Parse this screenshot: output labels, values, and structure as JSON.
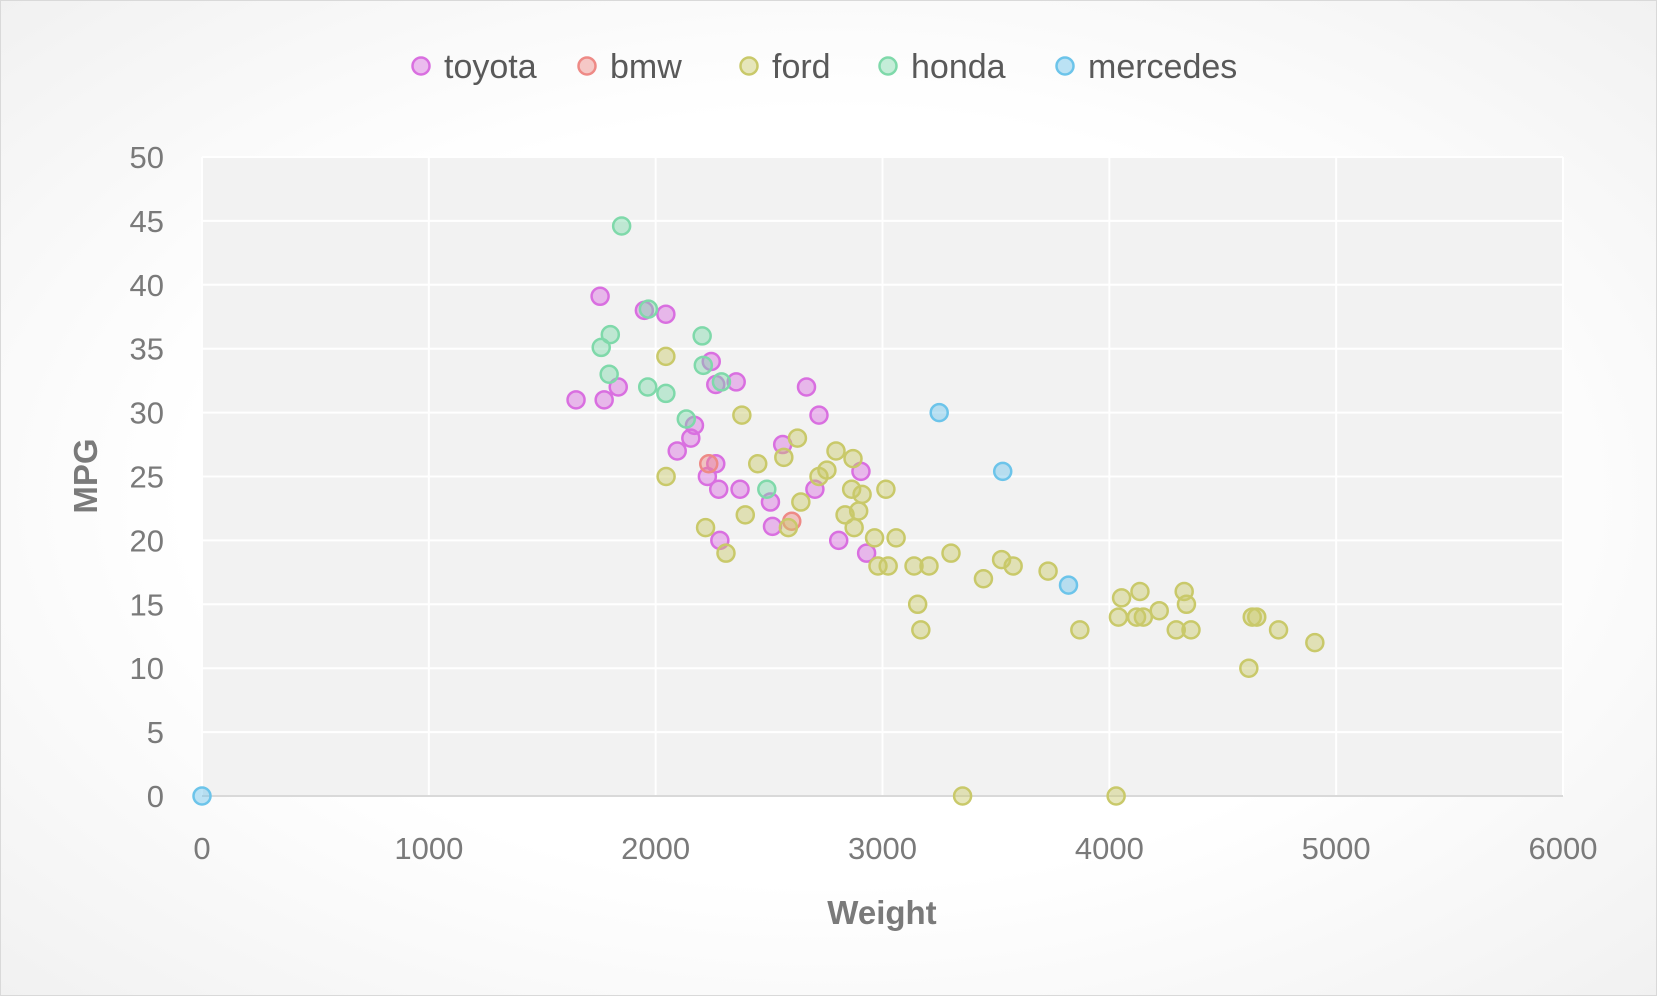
{
  "chart_data": {
    "type": "scatter",
    "title": "",
    "xlabel": "Weight",
    "ylabel": "MPG",
    "xlim": [
      0,
      6000
    ],
    "ylim": [
      0,
      50
    ],
    "xticks": [
      0,
      1000,
      2000,
      3000,
      4000,
      5000,
      6000
    ],
    "yticks": [
      0,
      5,
      10,
      15,
      20,
      25,
      30,
      35,
      40,
      45,
      50
    ],
    "grid": true,
    "legend_position": "top",
    "series": [
      {
        "name": "toyota",
        "color": "#d96fe0",
        "points": [
          [
            1649,
            31
          ],
          [
            1755,
            39.1
          ],
          [
            1773,
            31
          ],
          [
            1835,
            32
          ],
          [
            1950,
            38
          ],
          [
            2045,
            37.7
          ],
          [
            2095,
            27
          ],
          [
            2155,
            28
          ],
          [
            2171,
            29
          ],
          [
            2228,
            25
          ],
          [
            2245,
            34
          ],
          [
            2265,
            26
          ],
          [
            2278,
            24
          ],
          [
            2265,
            32.2
          ],
          [
            2283,
            20
          ],
          [
            2355,
            32.4
          ],
          [
            2372,
            24
          ],
          [
            2506,
            23
          ],
          [
            2515,
            21.1
          ],
          [
            2560,
            27.5
          ],
          [
            2665,
            32
          ],
          [
            2702,
            24
          ],
          [
            2720,
            29.8
          ],
          [
            2807,
            20
          ],
          [
            2905,
            25.4
          ],
          [
            2930,
            19
          ]
        ]
      },
      {
        "name": "bmw",
        "color": "#ee8a86",
        "points": [
          [
            2234,
            26
          ],
          [
            2600,
            21.5
          ]
        ]
      },
      {
        "name": "ford",
        "color": "#c9c96a",
        "points": [
          [
            2045,
            34.4
          ],
          [
            2046,
            25
          ],
          [
            2220,
            21
          ],
          [
            2310,
            19
          ],
          [
            2380,
            29.8
          ],
          [
            2395,
            22
          ],
          [
            2450,
            26
          ],
          [
            2565,
            26.5
          ],
          [
            2585,
            21
          ],
          [
            2625,
            28
          ],
          [
            2640,
            23
          ],
          [
            2720,
            25
          ],
          [
            2755,
            25.5
          ],
          [
            2795,
            27
          ],
          [
            2835,
            22
          ],
          [
            2864,
            24
          ],
          [
            2870,
            26.4
          ],
          [
            2875,
            21
          ],
          [
            2895,
            22.3
          ],
          [
            2910,
            23.6
          ],
          [
            2965,
            20.2
          ],
          [
            2980,
            18
          ],
          [
            3015,
            24
          ],
          [
            3025,
            18
          ],
          [
            3060,
            20.2
          ],
          [
            3139,
            18
          ],
          [
            3155,
            15
          ],
          [
            3169,
            13
          ],
          [
            3205,
            18
          ],
          [
            3302,
            19
          ],
          [
            3353,
            0
          ],
          [
            3445,
            17
          ],
          [
            3525,
            18.5
          ],
          [
            3576,
            18
          ],
          [
            3730,
            17.6
          ],
          [
            3870,
            13
          ],
          [
            4030,
            0
          ],
          [
            4040,
            14
          ],
          [
            4054,
            15.5
          ],
          [
            4120,
            14
          ],
          [
            4135,
            16
          ],
          [
            4150,
            14
          ],
          [
            4220,
            14.5
          ],
          [
            4295,
            13
          ],
          [
            4330,
            16
          ],
          [
            4340,
            15
          ],
          [
            4360,
            13
          ],
          [
            4615,
            10
          ],
          [
            4630,
            14
          ],
          [
            4650,
            14
          ],
          [
            4746,
            13
          ],
          [
            4906,
            12
          ]
        ]
      },
      {
        "name": "honda",
        "color": "#7fd9aa",
        "points": [
          [
            1760,
            35.1
          ],
          [
            1795,
            33
          ],
          [
            1800,
            36.1
          ],
          [
            1850,
            44.6
          ],
          [
            1965,
            32
          ],
          [
            1968,
            38.1
          ],
          [
            2045,
            31.5
          ],
          [
            2135,
            29.5
          ],
          [
            2205,
            36
          ],
          [
            2210,
            33.7
          ],
          [
            2290,
            32.4
          ],
          [
            2490,
            24
          ]
        ]
      },
      {
        "name": "mercedes",
        "color": "#6cc4ea",
        "points": [
          [
            3250,
            30
          ],
          [
            3530,
            25.4
          ],
          [
            3820,
            16.5
          ],
          [
            0,
            0
          ]
        ]
      }
    ]
  }
}
